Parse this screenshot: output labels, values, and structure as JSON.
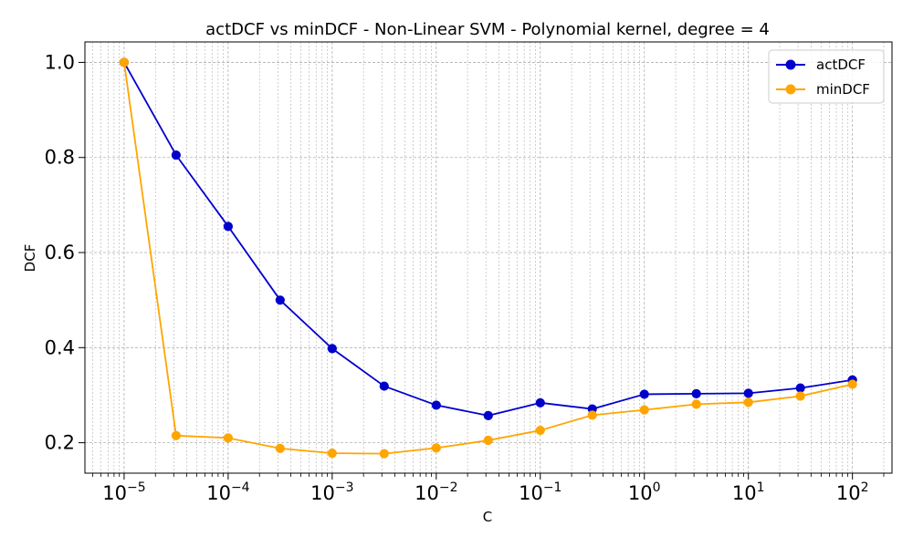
{
  "chart_data": {
    "type": "line",
    "title": "actDCF vs minDCF - Non-Linear SVM - Polynomial kernel, degree = 4",
    "xlabel": "C",
    "ylabel": "DCF",
    "xscale": "log",
    "xlim": [
      4.2e-06,
      240
    ],
    "ylim": [
      0.136,
      1.043
    ],
    "x_ticks": [
      {
        "value": 1e-05,
        "base": "10",
        "exp": "−5"
      },
      {
        "value": 0.0001,
        "base": "10",
        "exp": "−4"
      },
      {
        "value": 0.001,
        "base": "10",
        "exp": "−3"
      },
      {
        "value": 0.01,
        "base": "10",
        "exp": "−2"
      },
      {
        "value": 0.1,
        "base": "10",
        "exp": "−1"
      },
      {
        "value": 1,
        "base": "10",
        "exp": "0"
      },
      {
        "value": 10,
        "base": "10",
        "exp": "1"
      },
      {
        "value": 100,
        "base": "10",
        "exp": "2"
      }
    ],
    "y_ticks": [
      {
        "value": 0.2,
        "label": "0.2"
      },
      {
        "value": 0.4,
        "label": "0.4"
      },
      {
        "value": 0.6,
        "label": "0.6"
      },
      {
        "value": 0.8,
        "label": "0.8"
      },
      {
        "value": 1.0,
        "label": "1.0"
      }
    ],
    "grid": true,
    "grid_minor": true,
    "legend_position": "top-right",
    "x": [
      1e-05,
      3.16e-05,
      0.0001,
      0.000316,
      0.001,
      0.00316,
      0.01,
      0.0316,
      0.1,
      0.316,
      1,
      3.16,
      10,
      31.6,
      100
    ],
    "series": [
      {
        "name": "actDCF",
        "color": "#0000cc",
        "values": [
          1.0,
          0.805,
          0.655,
          0.5,
          0.398,
          0.319,
          0.279,
          0.257,
          0.284,
          0.271,
          0.302,
          0.303,
          0.304,
          0.315,
          0.332
        ]
      },
      {
        "name": "minDCF",
        "color": "#ffa500",
        "values": [
          1.0,
          0.215,
          0.21,
          0.188,
          0.178,
          0.177,
          0.189,
          0.205,
          0.226,
          0.258,
          0.269,
          0.281,
          0.285,
          0.298,
          0.323
        ]
      }
    ]
  }
}
